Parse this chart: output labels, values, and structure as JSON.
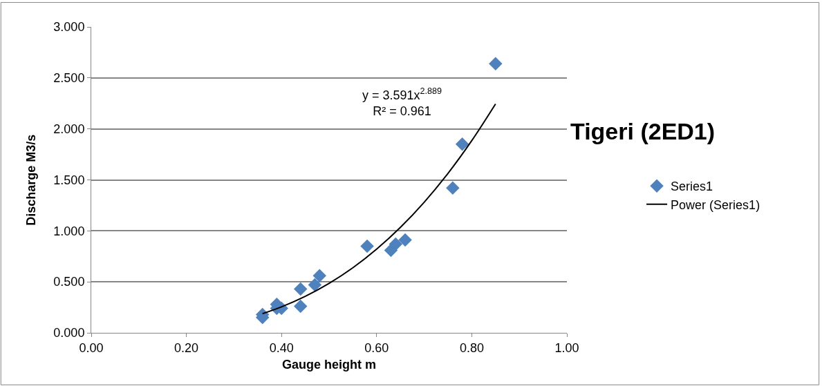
{
  "chart_data": {
    "type": "scatter",
    "title": "Tigeri (2ED1)",
    "xlabel": "Gauge height m",
    "ylabel": "Discharge M3/s",
    "annotations": [
      "y = 3.591x$^{2.889}$\nR² = 0.961"
    ],
    "xlim": [
      0,
      1
    ],
    "xticks": [
      {
        "value": 0,
        "label": "0.00"
      },
      {
        "value": 0.2,
        "label": "0.20"
      },
      {
        "value": 0.4,
        "label": "0.40"
      },
      {
        "value": 0.6,
        "label": "0.60"
      },
      {
        "value": 0.8,
        "label": "0.80"
      },
      {
        "value": 1,
        "label": "1.00"
      }
    ],
    "ylim": [
      0,
      3
    ],
    "yticks": [
      {
        "value": 0,
        "label": "0.000"
      },
      {
        "value": 0.5,
        "label": "0.500"
      },
      {
        "value": 1,
        "label": "1.000"
      },
      {
        "value": 1.5,
        "label": "1.500"
      },
      {
        "value": 2,
        "label": "2.000"
      },
      {
        "value": 2.5,
        "label": "2.500"
      },
      {
        "value": 3,
        "label": "3.000"
      }
    ],
    "grid": "y",
    "legend": "right",
    "marker": "diamond",
    "series": [
      {
        "name": "Series1",
        "color": "#4f81bd",
        "x": [
          0.36,
          0.36,
          0.39,
          0.39,
          0.4,
          0.44,
          0.44,
          0.47,
          0.48,
          0.58,
          0.63,
          0.64,
          0.66,
          0.76,
          0.78,
          0.85
        ],
        "values": [
          0.15,
          0.18,
          0.28,
          0.24,
          0.24,
          0.43,
          0.26,
          0.47,
          0.56,
          0.85,
          0.81,
          0.87,
          0.91,
          1.42,
          1.85,
          2.64
        ]
      },
      {
        "name": "Power (Series1)",
        "type": "line",
        "color": "#000000",
        "marker": "none",
        "x": [
          0.36,
          0.4,
          0.45,
          0.5,
          0.55,
          0.6,
          0.65,
          0.7,
          0.75,
          0.8,
          0.85
        ],
        "values": [
          0.188,
          0.255,
          0.358,
          0.485,
          0.638,
          0.821,
          1.034,
          1.281,
          1.564,
          1.885,
          2.245
        ]
      }
    ]
  }
}
